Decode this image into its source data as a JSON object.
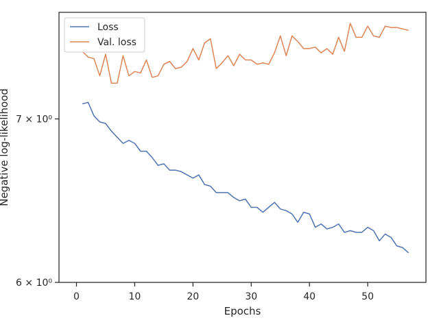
{
  "chart_data": {
    "type": "line",
    "xlabel": "Epochs",
    "ylabel": "Negative log-likelihood",
    "yscale": "log",
    "xlim": [
      -3,
      60
    ],
    "ylim": [
      6.0,
      7.74
    ],
    "xticks": [
      0,
      10,
      20,
      30,
      40,
      50
    ],
    "yticks": [
      {
        "value": 6.0,
        "label": "6 × 10⁰"
      },
      {
        "value": 7.0,
        "label": "7 × 10⁰"
      }
    ],
    "grid": false,
    "legend": "upper-left",
    "x": [
      1,
      2,
      3,
      4,
      5,
      6,
      7,
      8,
      9,
      10,
      11,
      12,
      13,
      14,
      15,
      16,
      17,
      18,
      19,
      20,
      21,
      22,
      23,
      24,
      25,
      26,
      27,
      28,
      29,
      30,
      31,
      32,
      33,
      34,
      35,
      36,
      37,
      38,
      39,
      40,
      41,
      42,
      43,
      44,
      45,
      46,
      47,
      48,
      49,
      50,
      51,
      52,
      53,
      54,
      55,
      56,
      57
    ],
    "series": [
      {
        "name": "Loss",
        "color": "#4c72b0",
        "values": [
          7.1,
          7.11,
          7.02,
          6.98,
          6.97,
          6.92,
          6.88,
          6.84,
          6.86,
          6.84,
          6.79,
          6.79,
          6.75,
          6.7,
          6.71,
          6.67,
          6.67,
          6.66,
          6.64,
          6.62,
          6.64,
          6.58,
          6.57,
          6.53,
          6.53,
          6.53,
          6.5,
          6.48,
          6.49,
          6.44,
          6.44,
          6.41,
          6.44,
          6.47,
          6.43,
          6.42,
          6.4,
          6.35,
          6.41,
          6.4,
          6.32,
          6.34,
          6.31,
          6.32,
          6.34,
          6.29,
          6.3,
          6.29,
          6.29,
          6.32,
          6.3,
          6.24,
          6.28,
          6.26,
          6.21,
          6.2,
          6.17
        ]
      },
      {
        "name": "Val. loss",
        "color": "#dd8452",
        "values": [
          7.46,
          7.42,
          7.41,
          7.29,
          7.44,
          7.24,
          7.24,
          7.43,
          7.29,
          7.32,
          7.31,
          7.4,
          7.28,
          7.29,
          7.37,
          7.39,
          7.34,
          7.35,
          7.39,
          7.48,
          7.4,
          7.52,
          7.55,
          7.34,
          7.38,
          7.43,
          7.36,
          7.44,
          7.4,
          7.4,
          7.37,
          7.38,
          7.37,
          7.45,
          7.57,
          7.43,
          7.57,
          7.53,
          7.48,
          7.48,
          7.49,
          7.45,
          7.48,
          7.44,
          7.56,
          7.46,
          7.66,
          7.56,
          7.56,
          7.64,
          7.57,
          7.56,
          7.64,
          7.63,
          7.63,
          7.62,
          7.61
        ]
      }
    ]
  }
}
